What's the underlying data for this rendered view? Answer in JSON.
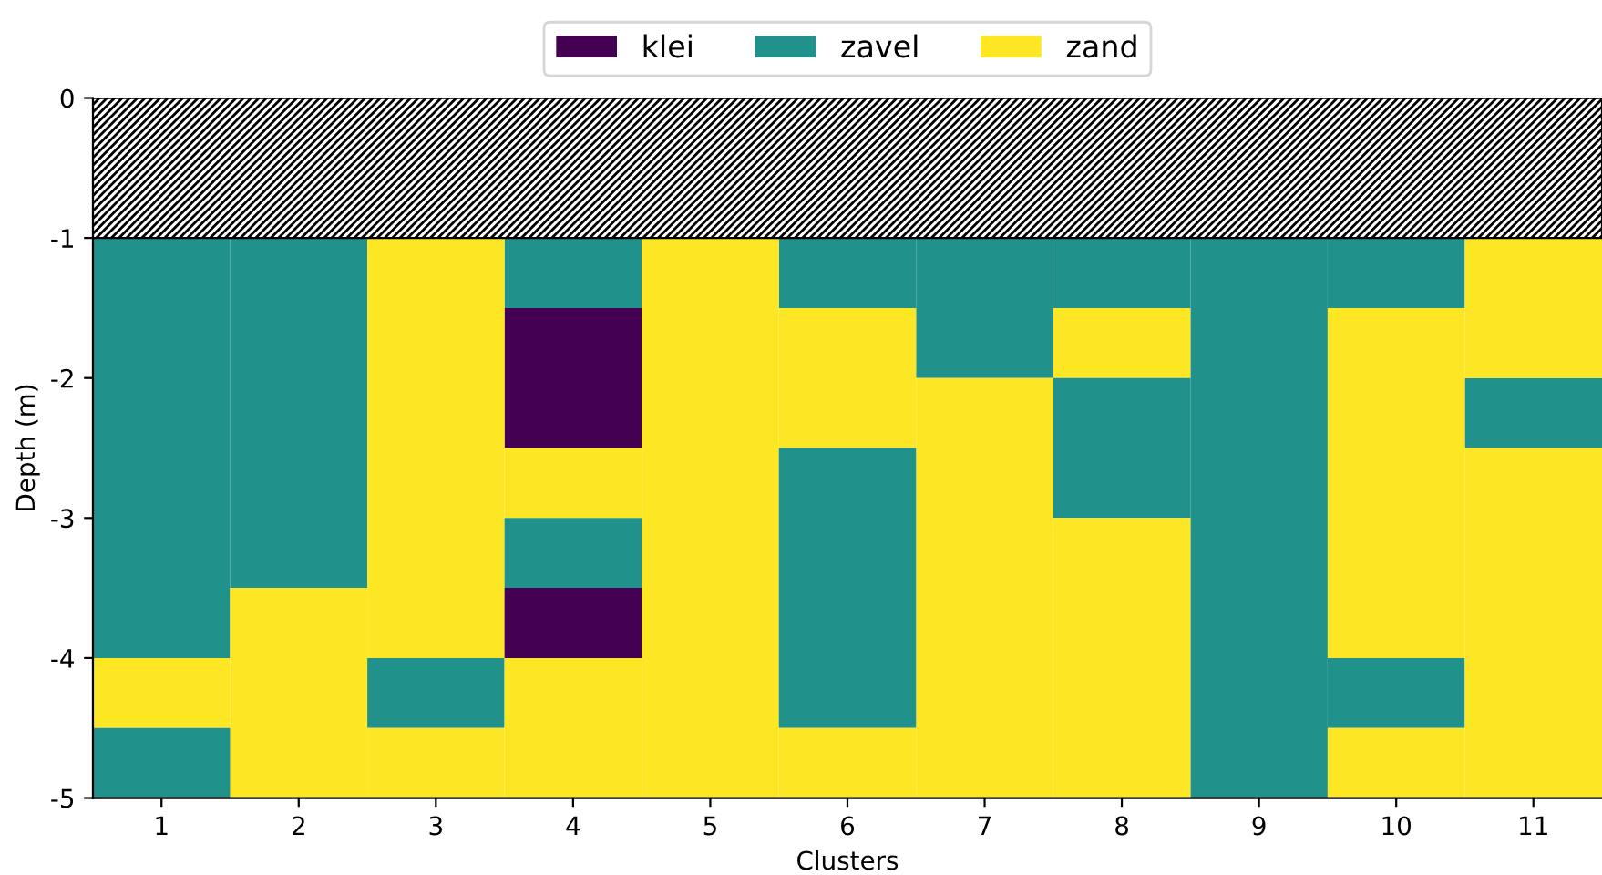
{
  "chart_data": {
    "type": "bar",
    "xlabel": "Clusters",
    "ylabel": "Depth (m)",
    "categories": [
      "1",
      "2",
      "3",
      "4",
      "5",
      "6",
      "7",
      "8",
      "9",
      "10",
      "11"
    ],
    "ylim": [
      -5,
      0
    ],
    "yticks": [
      -5,
      -4,
      -3,
      -2,
      -1,
      0
    ],
    "series": [
      {
        "name": "klei",
        "color": "#440154",
        "values": [
          null,
          null,
          null,
          -1,
          null,
          null,
          null,
          null,
          null,
          null,
          null
        ],
        "base": [
          null,
          null,
          null,
          -1.5,
          null,
          null,
          null,
          null,
          null,
          null,
          null
        ]
      },
      {
        "name": "zavel",
        "color": "#21918c",
        "values": [
          -3,
          -2.5,
          -0.5,
          -0.5,
          null,
          -0.5,
          -1,
          -0.5,
          -4,
          -0.5,
          -0.5
        ],
        "base": [
          -1,
          -1,
          -4,
          -1,
          null,
          -1,
          -1,
          -1,
          -1,
          -1,
          -2
        ]
      },
      {
        "name": "zand",
        "color": "#fde725",
        "values": [
          -0.5,
          -1.5,
          -3,
          -0.5,
          -4,
          -1,
          -3,
          -0.5,
          null,
          -2.5,
          -1
        ],
        "base": [
          -4,
          -3.5,
          -1,
          -2.5,
          -1,
          -1.5,
          -2,
          -1.5,
          null,
          -1.5,
          -1
        ]
      },
      {
        "color": "#440154",
        "values": [
          null,
          null,
          null,
          -0.5,
          null,
          null,
          null,
          null,
          null,
          null,
          null
        ],
        "base": [
          null,
          null,
          null,
          -3.5,
          null,
          null,
          null,
          null,
          null,
          null,
          null
        ]
      },
      {
        "color": "#21918c",
        "values": [
          -0.5,
          null,
          null,
          -0.5,
          null,
          -2,
          null,
          -1,
          null,
          -0.5,
          null
        ],
        "base": [
          -4.5,
          null,
          null,
          -3,
          null,
          -2.5,
          null,
          -2,
          null,
          -4,
          null
        ]
      },
      {
        "color": "#fde725",
        "values": [
          null,
          null,
          -0.5,
          -1,
          null,
          -0.5,
          null,
          -2,
          null,
          -0.5,
          -2.5
        ],
        "base": [
          null,
          null,
          -4.5,
          -4,
          null,
          -4.5,
          null,
          -3,
          null,
          -4.5,
          -2.5
        ]
      }
    ],
    "bands": [
      {
        "axis": "y",
        "from": 0,
        "to": -1,
        "color": "#000000"
      }
    ],
    "legend": "top"
  }
}
